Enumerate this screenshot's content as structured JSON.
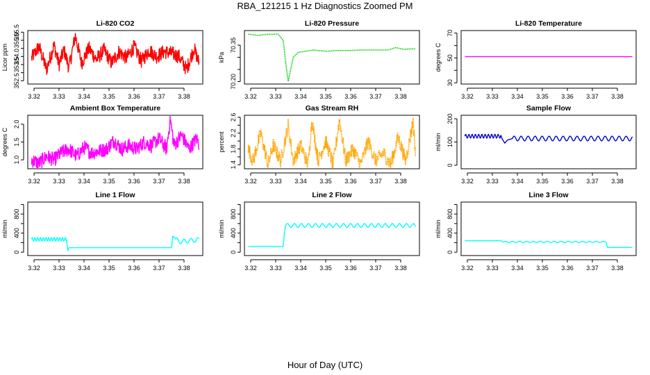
{
  "main_title": "RBA_121215  1 Hz Diagnostics Zoomed PM",
  "xlabel": "Hour of Day (UTC)",
  "chart_data": [
    {
      "type": "line",
      "title": "Li-820 CO2",
      "ylabel": "Licor ppm",
      "color": "#ff0000",
      "yticks": [
        "352.5",
        "353.5",
        "354.0",
        "355.0",
        "355.5"
      ],
      "ytick_values": [
        352.5,
        353.0,
        353.5,
        354.0,
        354.5,
        355.0,
        355.5
      ],
      "ytick_labels": [
        "352.5",
        "",
        "353.5",
        "354.0",
        "",
        "355.0",
        "355.5"
      ],
      "ylim": [
        352.3,
        355.6
      ],
      "xlim": [
        3.3175,
        3.3875
      ],
      "xticks": [
        "3.32",
        "3.33",
        "3.34",
        "3.35",
        "3.36",
        "3.37",
        "3.38"
      ],
      "x": [
        3.319,
        3.322,
        3.325,
        3.328,
        3.33,
        3.332,
        3.334,
        3.3365,
        3.339,
        3.342,
        3.345,
        3.348,
        3.351,
        3.354,
        3.357,
        3.36,
        3.363,
        3.366,
        3.369,
        3.372,
        3.375,
        3.378,
        3.381,
        3.384,
        3.386
      ],
      "values": [
        353.9,
        354.6,
        353.2,
        354.7,
        353.5,
        354.4,
        353.3,
        355.3,
        353.6,
        354.5,
        353.8,
        354.4,
        353.6,
        354.3,
        353.9,
        354.6,
        353.7,
        354.4,
        354.0,
        354.3,
        354.2,
        354.0,
        353.2,
        354.5,
        353.6
      ]
    },
    {
      "type": "line",
      "title": "Li-820 Pressure",
      "ylabel": "kPa",
      "color": "#00cc00",
      "yticks": [
        "70.20",
        "70.35"
      ],
      "ytick_values": [
        70.2,
        70.25,
        70.3,
        70.35
      ],
      "ytick_labels": [
        "70.20",
        "",
        "",
        "70.35"
      ],
      "ylim": [
        70.19,
        70.41
      ],
      "xlim": [
        3.3175,
        3.3875
      ],
      "xticks": [
        "3.32",
        "3.33",
        "3.34",
        "3.35",
        "3.36",
        "3.37",
        "3.38"
      ],
      "x": [
        3.319,
        3.323,
        3.327,
        3.331,
        3.333,
        3.334,
        3.335,
        3.336,
        3.337,
        3.339,
        3.342,
        3.345,
        3.35,
        3.355,
        3.36,
        3.365,
        3.37,
        3.375,
        3.378,
        3.381,
        3.386
      ],
      "values": [
        70.395,
        70.39,
        70.395,
        70.395,
        70.37,
        70.28,
        70.2,
        70.25,
        70.3,
        70.32,
        70.325,
        70.33,
        70.325,
        70.328,
        70.328,
        70.33,
        70.33,
        70.33,
        70.34,
        70.333,
        70.335
      ]
    },
    {
      "type": "line",
      "title": "Li-820 Temperature",
      "ylabel": "degrees C",
      "color": "#ff00ff",
      "yticks": [
        "30",
        "50",
        "70"
      ],
      "ytick_values": [
        30,
        40,
        50,
        60,
        70
      ],
      "ytick_labels": [
        "30",
        "",
        "50",
        "",
        "70"
      ],
      "ylim": [
        29,
        72
      ],
      "xlim": [
        3.3175,
        3.3875
      ],
      "xticks": [
        "3.32",
        "3.33",
        "3.34",
        "3.35",
        "3.36",
        "3.37",
        "3.38"
      ],
      "x": [
        3.319,
        3.386
      ],
      "values": [
        51,
        51
      ]
    },
    {
      "type": "line",
      "title": "Ambient Box Temperature",
      "ylabel": "degrees C",
      "color": "#ff00ff",
      "yticks": [
        "1.0",
        "1.5",
        "2.0"
      ],
      "ytick_values": [
        1.0,
        1.5,
        2.0
      ],
      "ytick_labels": [
        "1.0",
        "1.5",
        "2.0"
      ],
      "ylim": [
        0.75,
        2.25
      ],
      "xlim": [
        3.3175,
        3.3875
      ],
      "xticks": [
        "3.32",
        "3.33",
        "3.34",
        "3.35",
        "3.36",
        "3.37",
        "3.38"
      ],
      "x": [
        3.319,
        3.322,
        3.325,
        3.328,
        3.331,
        3.334,
        3.337,
        3.34,
        3.343,
        3.346,
        3.349,
        3.352,
        3.355,
        3.358,
        3.361,
        3.364,
        3.367,
        3.37,
        3.373,
        3.3745,
        3.376,
        3.379,
        3.382,
        3.385,
        3.386
      ],
      "values": [
        1.0,
        0.9,
        1.1,
        1.0,
        1.2,
        1.3,
        1.1,
        1.35,
        1.2,
        1.25,
        1.3,
        1.55,
        1.3,
        1.4,
        1.3,
        1.5,
        1.4,
        1.6,
        1.3,
        2.15,
        1.4,
        1.7,
        1.3,
        1.6,
        1.45
      ]
    },
    {
      "type": "line",
      "title": "Gas Stream RH",
      "ylabel": "percent",
      "color": "#ffa500",
      "yticks": [
        "1.4",
        "1.8",
        "2.2",
        "2.6"
      ],
      "ytick_values": [
        1.4,
        1.6,
        1.8,
        2.0,
        2.2,
        2.4,
        2.6
      ],
      "ytick_labels": [
        "1.4",
        "",
        "1.8",
        "",
        "2.2",
        "",
        "2.6"
      ],
      "ylim": [
        1.3,
        2.65
      ],
      "xlim": [
        3.3175,
        3.3875
      ],
      "xticks": [
        "3.32",
        "3.33",
        "3.34",
        "3.35",
        "3.36",
        "3.37",
        "3.38"
      ],
      "x": [
        3.319,
        3.321,
        3.324,
        3.327,
        3.329,
        3.332,
        3.335,
        3.337,
        3.34,
        3.343,
        3.3445,
        3.347,
        3.35,
        3.353,
        3.3555,
        3.358,
        3.361,
        3.364,
        3.367,
        3.37,
        3.373,
        3.376,
        3.379,
        3.382,
        3.385,
        3.386
      ],
      "values": [
        1.8,
        1.5,
        2.2,
        1.4,
        1.9,
        1.5,
        2.4,
        1.5,
        1.9,
        1.4,
        2.55,
        1.5,
        2.0,
        1.4,
        2.55,
        1.5,
        1.8,
        1.4,
        2.0,
        1.5,
        1.7,
        1.4,
        2.1,
        1.5,
        2.5,
        1.6
      ]
    },
    {
      "type": "line",
      "title": "Sample Flow",
      "ylabel": "ml/min",
      "color": "#0000cd",
      "yticks": [
        "0",
        "100",
        "200"
      ],
      "ytick_values": [
        0,
        100,
        200
      ],
      "ytick_labels": [
        "0",
        "100",
        "200"
      ],
      "ylim": [
        -15,
        215
      ],
      "xlim": [
        3.3175,
        3.3875
      ],
      "xticks": [
        "3.32",
        "3.33",
        "3.34",
        "3.35",
        "3.36",
        "3.37",
        "3.38"
      ],
      "x": [
        3.319,
        3.3335,
        3.334,
        3.335,
        3.336,
        3.338,
        3.386
      ],
      "values": [
        125,
        125,
        112,
        95,
        108,
        115,
        115
      ],
      "oscillation": [
        {
          "from": 3.319,
          "to": 3.3335,
          "amplitude": 8,
          "period": 0.0013
        },
        {
          "from": 3.338,
          "to": 3.386,
          "amplitude": 10,
          "period": 0.0028
        }
      ]
    },
    {
      "type": "line",
      "title": "Line 1 Flow",
      "ylabel": "ml/min",
      "color": "#00ffff",
      "yticks": [
        "0",
        "400",
        "800"
      ],
      "ytick_values": [
        0,
        200,
        400,
        600,
        800,
        1000
      ],
      "ytick_labels": [
        "0",
        "",
        "400",
        "",
        "800",
        ""
      ],
      "ylim": [
        -70,
        1050
      ],
      "xlim": [
        3.3175,
        3.3875
      ],
      "xticks": [
        "3.32",
        "3.33",
        "3.34",
        "3.35",
        "3.36",
        "3.37",
        "3.38"
      ],
      "x": [
        3.319,
        3.333,
        3.3335,
        3.334,
        3.375,
        3.3755,
        3.3765,
        3.378,
        3.386
      ],
      "values": [
        270,
        270,
        30,
        95,
        95,
        340,
        280,
        220,
        260
      ],
      "oscillation": [
        {
          "from": 3.319,
          "to": 3.333,
          "amplitude": 35,
          "period": 0.0011
        },
        {
          "from": 3.3765,
          "to": 3.386,
          "amplitude": 45,
          "period": 0.0028
        }
      ]
    },
    {
      "type": "line",
      "title": "Line 2 Flow",
      "ylabel": "ml/min",
      "color": "#00ffff",
      "yticks": [
        "0",
        "400",
        "800"
      ],
      "ytick_values": [
        0,
        200,
        400,
        600,
        800,
        1000
      ],
      "ytick_labels": [
        "0",
        "",
        "400",
        "",
        "800",
        ""
      ],
      "ylim": [
        -70,
        1050
      ],
      "xlim": [
        3.3175,
        3.3875
      ],
      "xticks": [
        "3.32",
        "3.33",
        "3.34",
        "3.35",
        "3.36",
        "3.37",
        "3.38"
      ],
      "x": [
        3.319,
        3.333,
        3.3335,
        3.334,
        3.386
      ],
      "values": [
        120,
        120,
        430,
        560,
        560
      ],
      "oscillation": [
        {
          "from": 3.334,
          "to": 3.386,
          "amplitude": 40,
          "period": 0.0028
        }
      ]
    },
    {
      "type": "line",
      "title": "Line 3 Flow",
      "ylabel": "ml/min",
      "color": "#00ffff",
      "yticks": [
        "0",
        "400",
        "800"
      ],
      "ytick_values": [
        0,
        200,
        400,
        600,
        800,
        1000
      ],
      "ytick_labels": [
        "0",
        "",
        "400",
        "",
        "800",
        ""
      ],
      "ylim": [
        -70,
        1050
      ],
      "xlim": [
        3.3175,
        3.3875
      ],
      "xticks": [
        "3.32",
        "3.33",
        "3.34",
        "3.35",
        "3.36",
        "3.37",
        "3.38"
      ],
      "x": [
        3.319,
        3.3335,
        3.334,
        3.3755,
        3.376,
        3.386
      ],
      "values": [
        240,
        240,
        215,
        215,
        100,
        100
      ],
      "oscillation": [
        {
          "from": 3.3345,
          "to": 3.3755,
          "amplitude": 12,
          "period": 0.0028
        }
      ]
    }
  ]
}
